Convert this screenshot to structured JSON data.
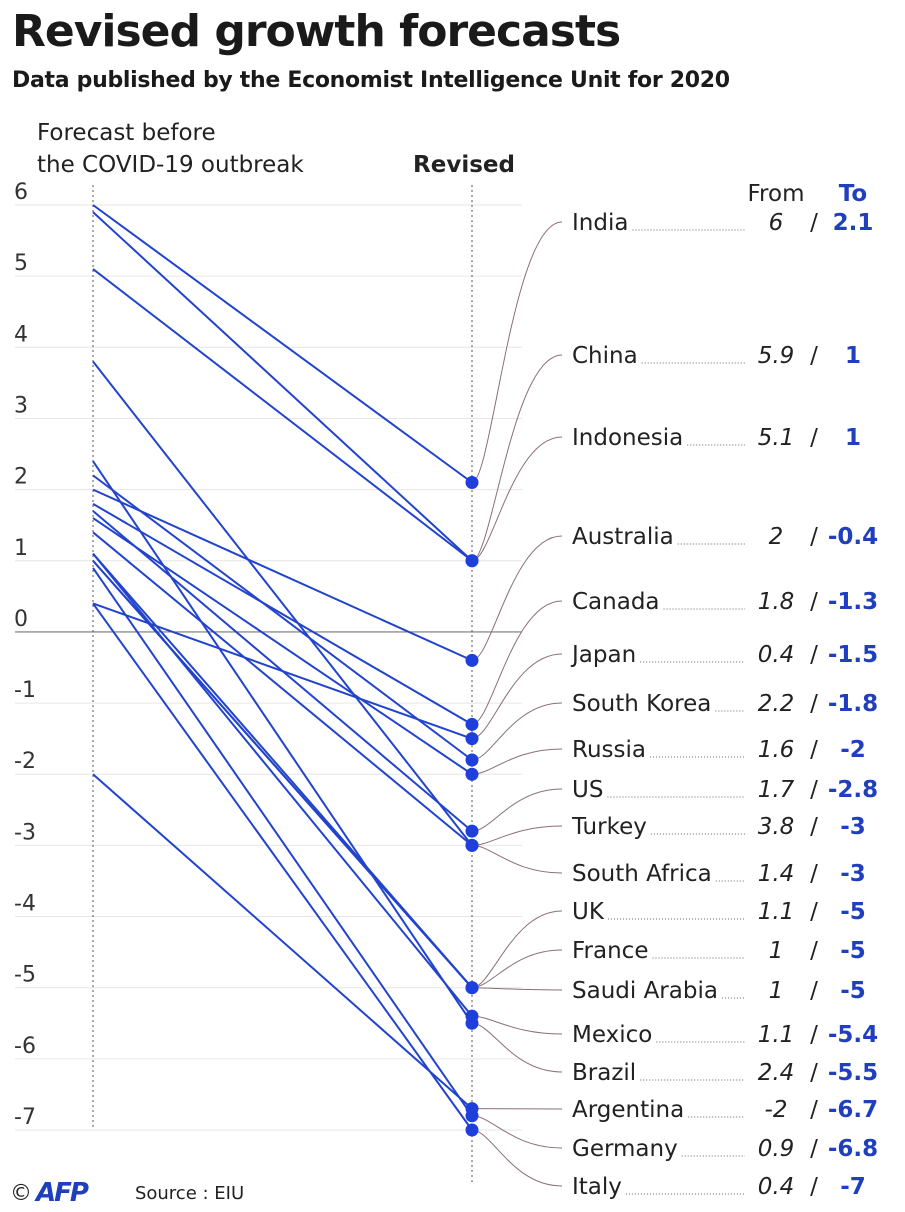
{
  "chart_data": {
    "type": "slope",
    "title": "Revised growth forecasts",
    "subtitle": "Data published by the Economist Intelligence Unit for 2020",
    "left_label_line1": "Forecast before",
    "left_label_line2": "the COVID-19 outbreak",
    "right_label": "Revised",
    "from_header": "From",
    "to_header": "To",
    "ylim": [
      -7,
      6
    ],
    "yticks": [
      "6",
      "5",
      "4",
      "3",
      "2",
      "1",
      "0",
      "-1",
      "-2",
      "-3",
      "-4",
      "-5",
      "-6",
      "-7"
    ],
    "countries": [
      {
        "name": "India",
        "from": 6,
        "to": 2.1,
        "from_label": "6",
        "to_label": "2.1"
      },
      {
        "name": "China",
        "from": 5.9,
        "to": 1,
        "from_label": "5.9",
        "to_label": "1"
      },
      {
        "name": "Indonesia",
        "from": 5.1,
        "to": 1,
        "from_label": "5.1",
        "to_label": "1"
      },
      {
        "name": "Australia",
        "from": 2,
        "to": -0.4,
        "from_label": "2",
        "to_label": "-0.4"
      },
      {
        "name": "Canada",
        "from": 1.8,
        "to": -1.3,
        "from_label": "1.8",
        "to_label": "-1.3"
      },
      {
        "name": "Japan",
        "from": 0.4,
        "to": -1.5,
        "from_label": "0.4",
        "to_label": "-1.5"
      },
      {
        "name": "South Korea",
        "from": 2.2,
        "to": -1.8,
        "from_label": "2.2",
        "to_label": "-1.8"
      },
      {
        "name": "Russia",
        "from": 1.6,
        "to": -2,
        "from_label": "1.6",
        "to_label": "-2"
      },
      {
        "name": "US",
        "from": 1.7,
        "to": -2.8,
        "from_label": "1.7",
        "to_label": "-2.8"
      },
      {
        "name": "Turkey",
        "from": 3.8,
        "to": -3,
        "from_label": "3.8",
        "to_label": "-3"
      },
      {
        "name": "South Africa",
        "from": 1.4,
        "to": -3,
        "from_label": "1.4",
        "to_label": "-3"
      },
      {
        "name": "UK",
        "from": 1.1,
        "to": -5,
        "from_label": "1.1",
        "to_label": "-5"
      },
      {
        "name": "France",
        "from": 1,
        "to": -5,
        "from_label": "1",
        "to_label": "-5"
      },
      {
        "name": "Saudi Arabia",
        "from": 1,
        "to": -5,
        "from_label": "1",
        "to_label": "-5"
      },
      {
        "name": "Mexico",
        "from": 1.1,
        "to": -5.4,
        "from_label": "1.1",
        "to_label": "-5.4"
      },
      {
        "name": "Brazil",
        "from": 2.4,
        "to": -5.5,
        "from_label": "2.4",
        "to_label": "-5.5"
      },
      {
        "name": "Argentina",
        "from": -2,
        "to": -6.7,
        "from_label": "-2",
        "to_label": "-6.7"
      },
      {
        "name": "Germany",
        "from": 0.9,
        "to": -6.8,
        "from_label": "0.9",
        "to_label": "-6.8"
      },
      {
        "name": "Italy",
        "from": 0.4,
        "to": -7,
        "from_label": "0.4",
        "to_label": "-7"
      }
    ],
    "colors": {
      "line": "#2244cc",
      "dot": "#1f3fdd",
      "to_text": "#1f3fbf",
      "connector": "#8a6f78",
      "grid": "#e6e6e6"
    }
  },
  "footer": {
    "copyright": "©",
    "logo": "AFP",
    "source": "Source : EIU"
  }
}
